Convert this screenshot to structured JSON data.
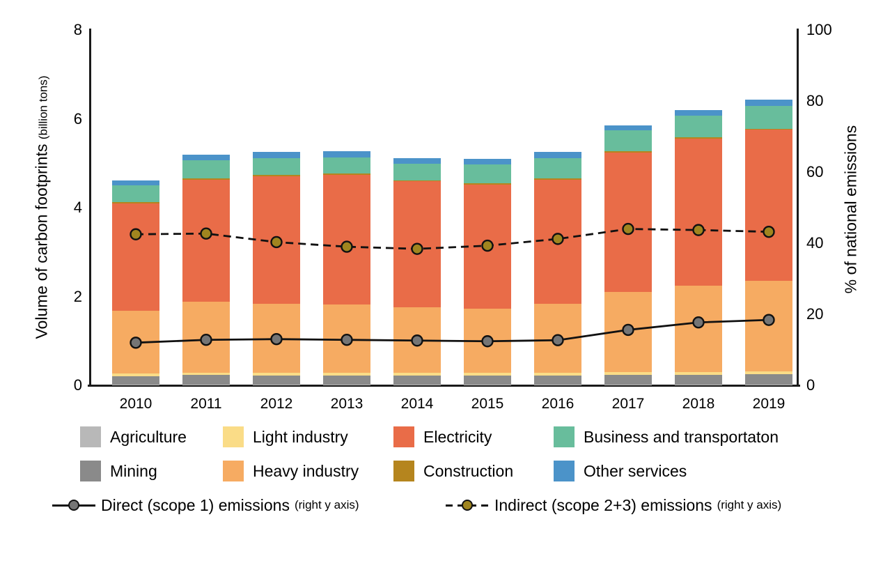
{
  "chart_data": {
    "type": "bar",
    "subtype": "stacked-bar-with-lines",
    "categories": [
      "2010",
      "2011",
      "2012",
      "2013",
      "2014",
      "2015",
      "2016",
      "2017",
      "2018",
      "2019"
    ],
    "bar_series": [
      {
        "name": "Agriculture",
        "color": "#b8b8b8",
        "values": [
          0.02,
          0.02,
          0.02,
          0.02,
          0.02,
          0.02,
          0.02,
          0.02,
          0.02,
          0.02
        ]
      },
      {
        "name": "Mining",
        "color": "#8a8a8a",
        "values": [
          0.19,
          0.21,
          0.2,
          0.2,
          0.2,
          0.2,
          0.2,
          0.22,
          0.22,
          0.23
        ]
      },
      {
        "name": "Light industry",
        "color": "#fadc87",
        "values": [
          0.06,
          0.06,
          0.06,
          0.06,
          0.06,
          0.06,
          0.06,
          0.06,
          0.06,
          0.06
        ]
      },
      {
        "name": "Heavy industry",
        "color": "#f6ab62",
        "values": [
          1.41,
          1.59,
          1.56,
          1.54,
          1.48,
          1.45,
          1.56,
          1.81,
          1.94,
          2.04
        ]
      },
      {
        "name": "Electricity",
        "color": "#e96c48",
        "values": [
          2.42,
          2.75,
          2.87,
          2.92,
          2.83,
          2.79,
          2.79,
          3.13,
          3.31,
          3.4
        ]
      },
      {
        "name": "Construction",
        "color": "#b5851e",
        "values": [
          0.03,
          0.03,
          0.03,
          0.03,
          0.03,
          0.03,
          0.03,
          0.03,
          0.03,
          0.03
        ]
      },
      {
        "name": "Business and transportaton",
        "color": "#68bd9c",
        "values": [
          0.37,
          0.4,
          0.38,
          0.36,
          0.37,
          0.42,
          0.46,
          0.47,
          0.49,
          0.51
        ]
      },
      {
        "name": "Other services",
        "color": "#4b93c9",
        "values": [
          0.11,
          0.13,
          0.13,
          0.14,
          0.13,
          0.13,
          0.13,
          0.11,
          0.13,
          0.14
        ]
      }
    ],
    "line_series": [
      {
        "name": "Direct (scope 1) emissions",
        "suffix": "(right y axis)",
        "style": "solid",
        "marker_color": "#757575",
        "values": [
          12.0,
          12.8,
          13.0,
          12.8,
          12.6,
          12.4,
          12.7,
          15.6,
          17.7,
          18.4
        ]
      },
      {
        "name": "Indirect (scope 2+3) emissions",
        "suffix": "(right y axis)",
        "style": "dashed",
        "marker_color": "#a0851f",
        "values": [
          42.5,
          42.7,
          40.3,
          39.0,
          38.4,
          39.3,
          41.2,
          44.0,
          43.7,
          43.2
        ]
      }
    ],
    "left_axis": {
      "title": "Volume of carbon footprints",
      "title_small": "(billion tons)",
      "min": 0,
      "max": 8,
      "ticks": [
        0,
        2,
        4,
        6,
        8
      ]
    },
    "right_axis": {
      "title": "% of national emissions",
      "min": 0,
      "max": 100,
      "ticks": [
        0,
        20,
        40,
        60,
        80,
        100
      ]
    },
    "legend_position": "bottom",
    "grid": "off"
  }
}
